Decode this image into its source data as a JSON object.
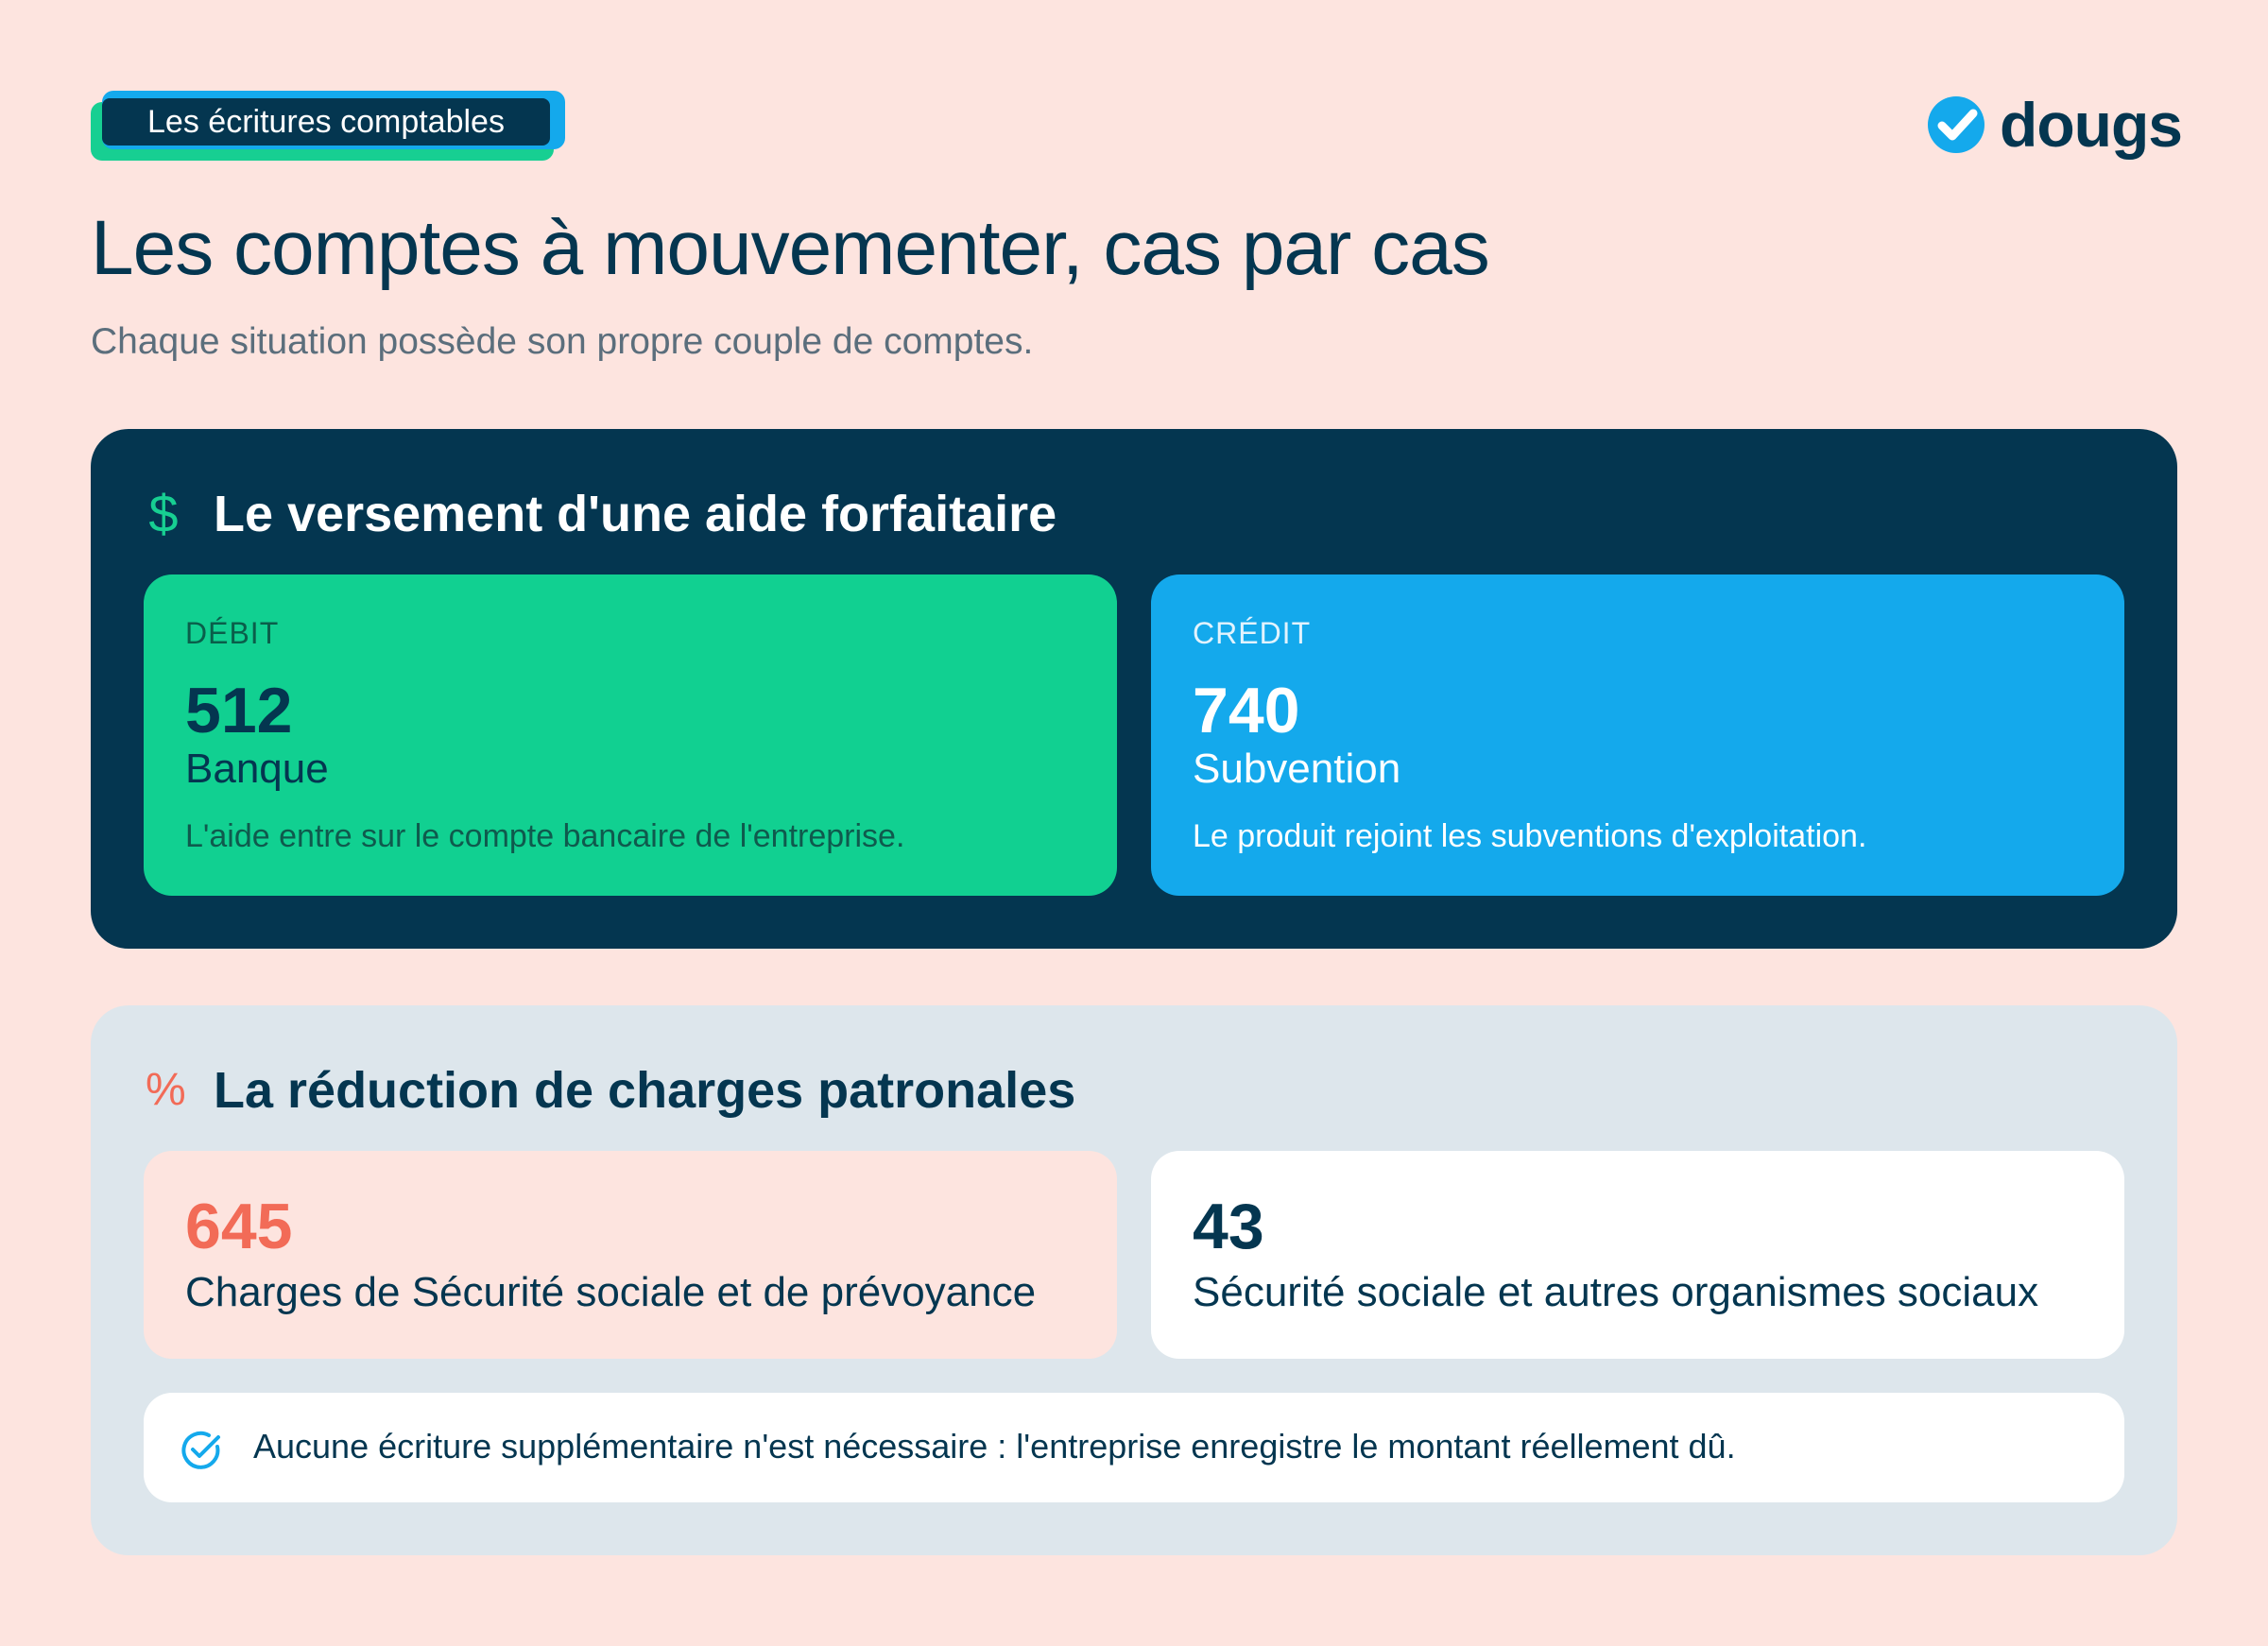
{
  "header": {
    "tag": "Les écritures comptables",
    "logo_text": "dougs",
    "title": "Les comptes à mouvementer, cas par cas",
    "subtitle": "Chaque situation possède son propre couple de comptes."
  },
  "cases": [
    {
      "icon": "dollar-icon",
      "title": "Le versement d'une aide forfaitaire",
      "debit": {
        "kicker": "DÉBIT",
        "account": "512",
        "name": "Banque",
        "description": "L'aide entre sur le compte bancaire de l'entreprise."
      },
      "credit": {
        "kicker": "CRÉDIT",
        "account": "740",
        "name": "Subvention",
        "description": "Le produit rejoint les subventions d'exploitation."
      }
    },
    {
      "icon": "percent-icon",
      "title": "La réduction de charges patronales",
      "left": {
        "account": "645",
        "name": "Charges de Sécurité sociale et de prévoyance"
      },
      "right": {
        "account": "43",
        "name": "Sécurité sociale et autres organismes sociaux"
      },
      "note": {
        "icon": "check-circle-icon",
        "text": "Aucune écriture supplémentaire n'est nécessaire : l'entreprise enregistre le montant réellement dû."
      }
    }
  ],
  "colors": {
    "background": "#fde4df",
    "navy": "#043650",
    "green": "#11d091",
    "blue": "#14a9ec",
    "coral": "#f26b57",
    "light_panel": "#dde6ec"
  }
}
